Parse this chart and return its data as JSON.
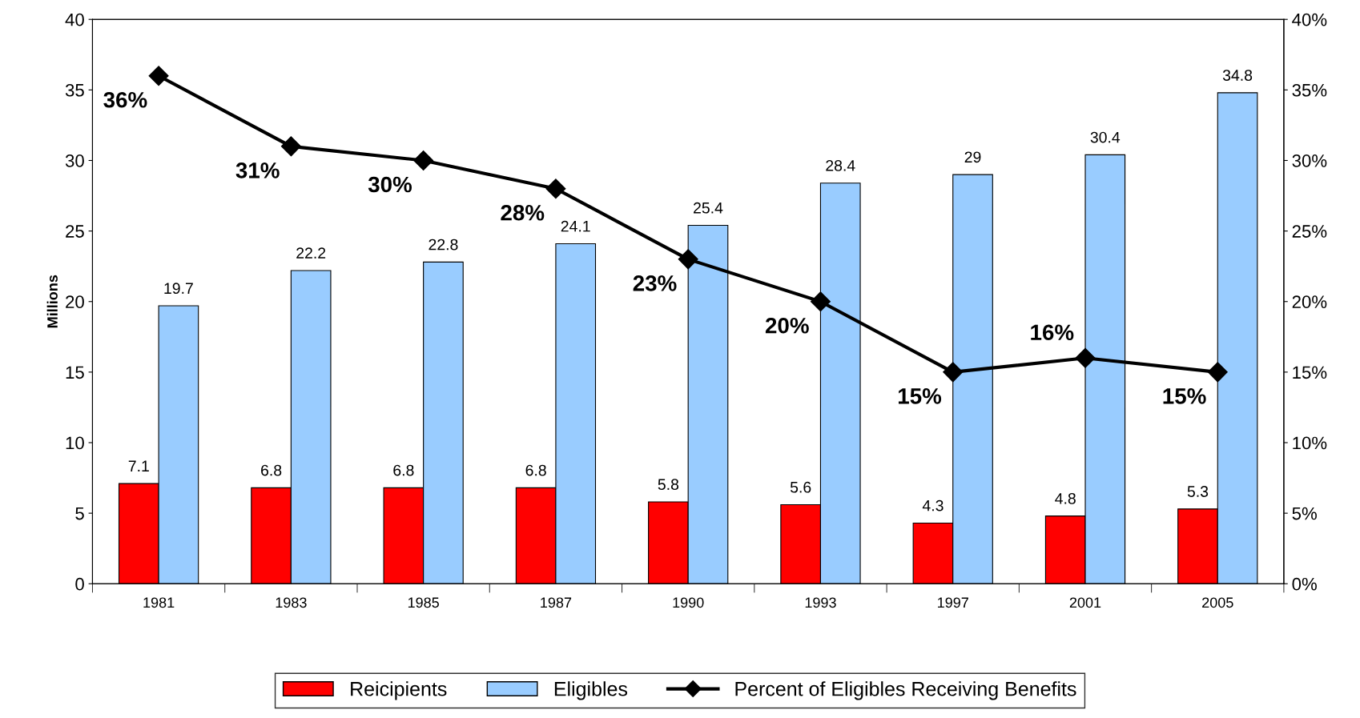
{
  "chart_data": {
    "type": "bar",
    "ylabel": "Millions",
    "categories": [
      "1981",
      "1983",
      "1985",
      "1987",
      "1990",
      "1993",
      "1997",
      "2001",
      "2005"
    ],
    "series": [
      {
        "name": "Reicipients",
        "color": "#ff0000",
        "values": [
          7.1,
          6.8,
          6.8,
          6.8,
          5.8,
          5.6,
          4.3,
          4.8,
          5.3
        ],
        "value_labels": [
          "7.1",
          "6.8",
          "6.8",
          "6.8",
          "5.8",
          "5.6",
          "4.3",
          "4.8",
          "5.3"
        ]
      },
      {
        "name": "Eligibles",
        "color": "#99ccff",
        "values": [
          19.7,
          22.2,
          22.8,
          24.1,
          25.4,
          28.4,
          29,
          30.4,
          34.8
        ],
        "value_labels": [
          "19.7",
          "22.2",
          "22.8",
          "24.1",
          "25.4",
          "28.4",
          "29",
          "30.4",
          "34.8"
        ]
      },
      {
        "name": "Percent of Eligibles Receiving Benefits",
        "type": "line",
        "axis": "y2",
        "color": "#000000",
        "marker": "diamond",
        "line_style": "solid",
        "values": [
          36,
          31,
          30,
          28,
          23,
          20,
          15,
          16,
          15
        ],
        "value_labels": [
          "36%",
          "31%",
          "30%",
          "28%",
          "23%",
          "20%",
          "15%",
          "16%",
          "15%"
        ]
      }
    ],
    "ylim": [
      0,
      40
    ],
    "yticks": [
      0,
      5,
      10,
      15,
      20,
      25,
      30,
      35,
      40
    ],
    "y2lim": [
      0,
      40
    ],
    "y2ticks": [
      {
        "value": 0,
        "label": "0%"
      },
      {
        "value": 5,
        "label": "5%"
      },
      {
        "value": 10,
        "label": "10%"
      },
      {
        "value": 15,
        "label": "15%"
      },
      {
        "value": 20,
        "label": "20%"
      },
      {
        "value": 25,
        "label": "25%"
      },
      {
        "value": 30,
        "label": "30%"
      },
      {
        "value": 35,
        "label": "35%"
      },
      {
        "value": 40,
        "label": "40%"
      }
    ],
    "grid": false,
    "legend": "bottom"
  }
}
